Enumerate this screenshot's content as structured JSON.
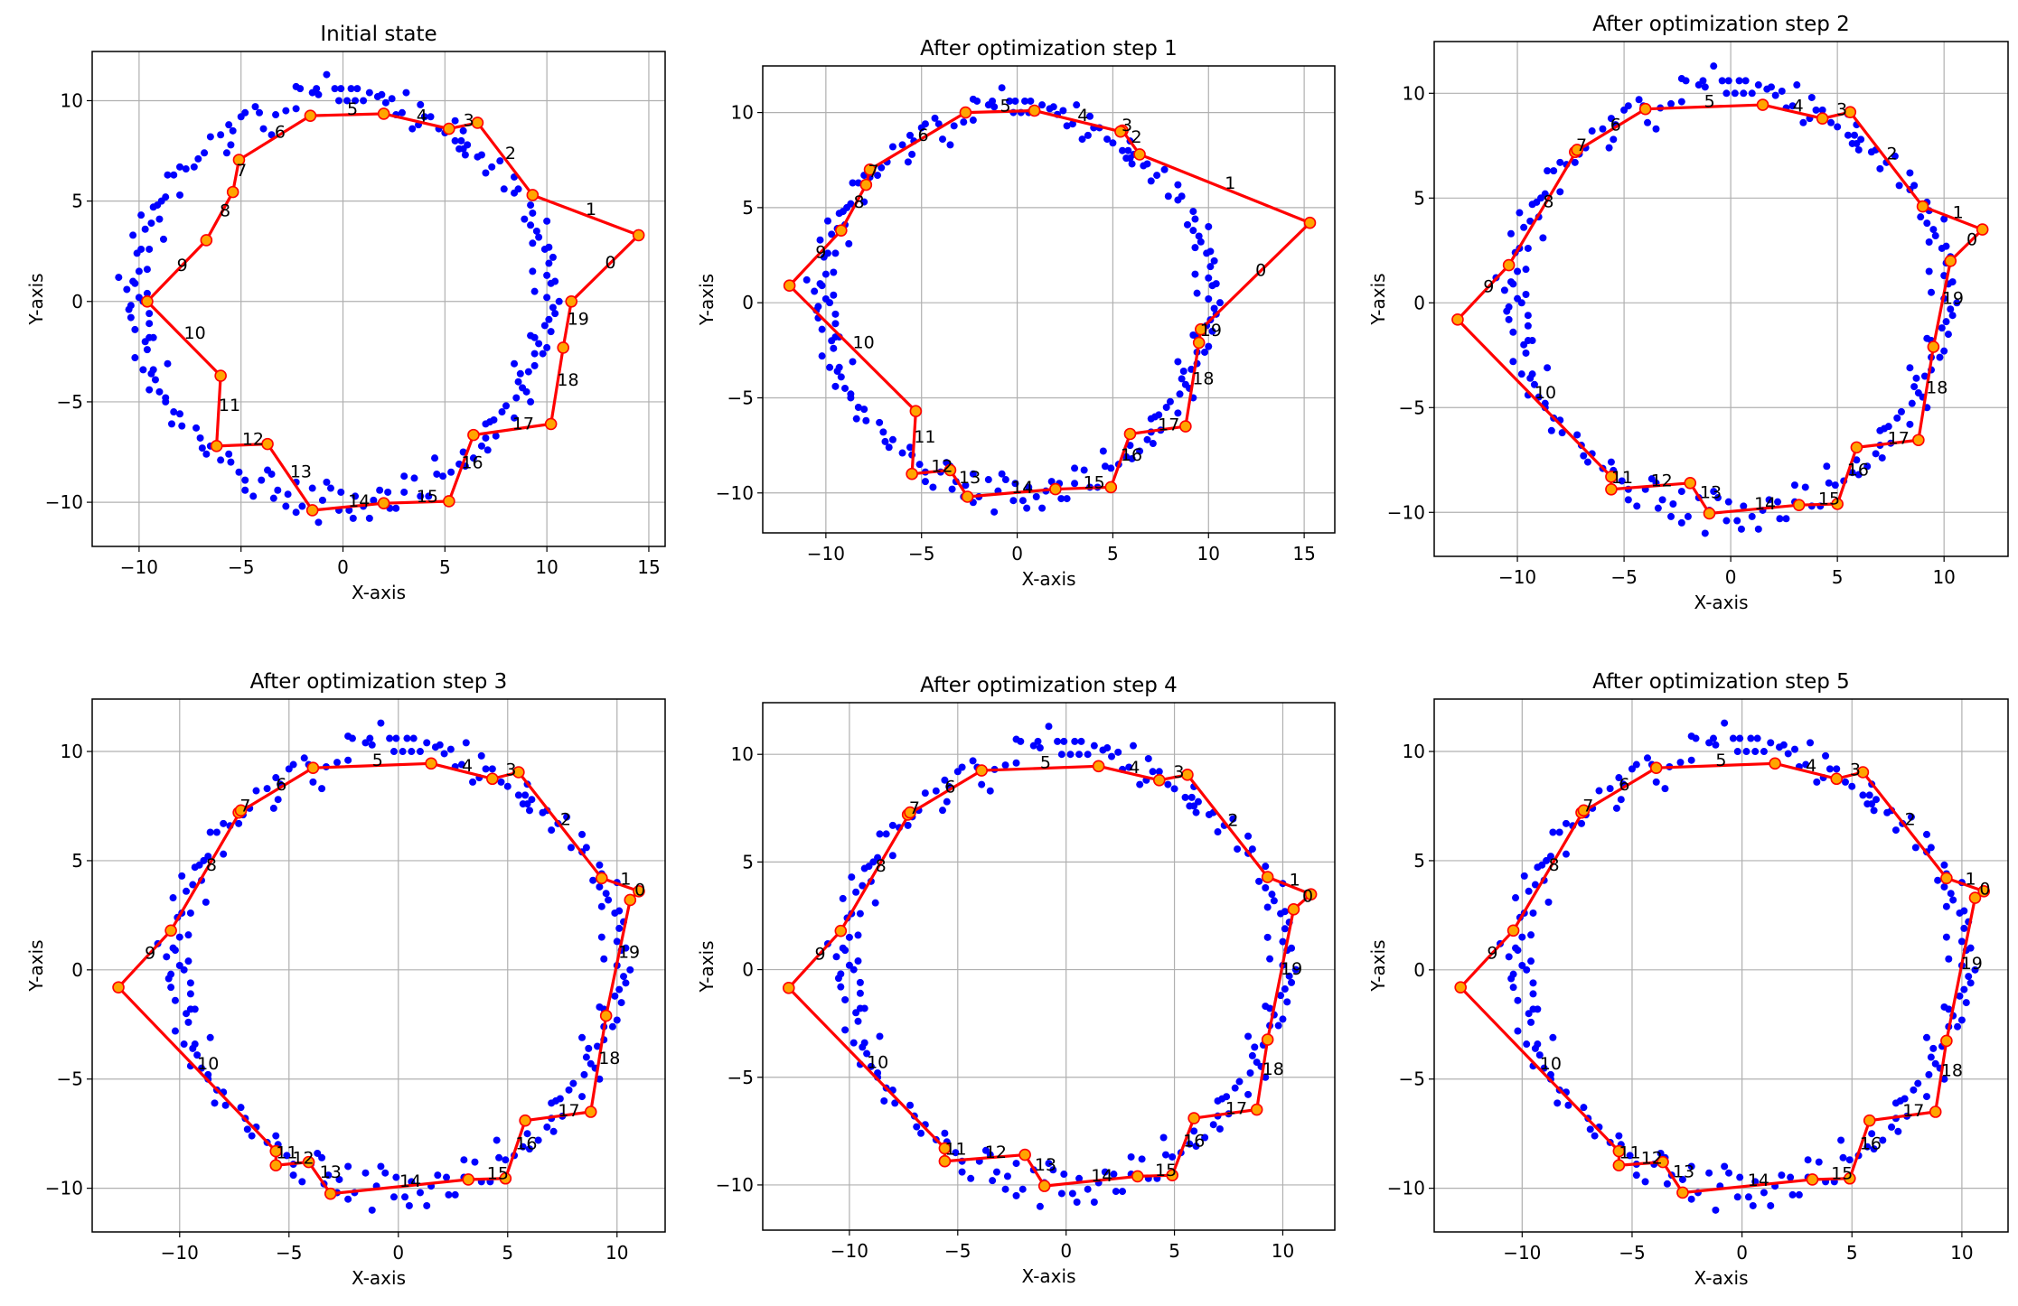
{
  "scatter_points": [
    [
      -0.8,
      11.3
    ],
    [
      -2.3,
      10.7
    ],
    [
      -2.1,
      10.6
    ],
    [
      -1.3,
      10.6
    ],
    [
      -1.5,
      10.4
    ],
    [
      -1.2,
      10.3
    ],
    [
      0.7,
      10.6
    ],
    [
      0.4,
      10.6
    ],
    [
      0.2,
      10.0
    ],
    [
      -0.4,
      10.6
    ],
    [
      -0.1,
      10.6
    ],
    [
      1.3,
      10.4
    ],
    [
      1.7,
      10.2
    ],
    [
      1.9,
      10.3
    ],
    [
      2.4,
      10.1
    ],
    [
      3.1,
      10.4
    ],
    [
      1.0,
      10.0
    ],
    [
      2.1,
      9.9
    ],
    [
      0.6,
      10.0
    ],
    [
      -0.2,
      10.0
    ],
    [
      2.6,
      9.3
    ],
    [
      2.9,
      9.4
    ],
    [
      3.8,
      9.8
    ],
    [
      4.0,
      9.2
    ],
    [
      4.3,
      9.2
    ],
    [
      3.4,
      8.6
    ],
    [
      3.7,
      8.8
    ],
    [
      4.7,
      8.6
    ],
    [
      5.0,
      8.4
    ],
    [
      5.5,
      9.0
    ],
    [
      5.9,
      8.5
    ],
    [
      -2.8,
      9.5
    ],
    [
      -2.3,
      9.6
    ],
    [
      -3.3,
      9.3
    ],
    [
      -3.5,
      8.3
    ],
    [
      -3.9,
      8.6
    ],
    [
      -4.1,
      9.4
    ],
    [
      -4.3,
      9.7
    ],
    [
      -4.8,
      9.4
    ],
    [
      -5.0,
      9.2
    ],
    [
      -5.6,
      8.8
    ],
    [
      -5.4,
      8.5
    ],
    [
      -5.5,
      7.8
    ],
    [
      -5.7,
      7.4
    ],
    [
      -6.0,
      8.3
    ],
    [
      -6.5,
      8.2
    ],
    [
      -6.8,
      7.4
    ],
    [
      -7.1,
      7.1
    ],
    [
      -7.3,
      6.7
    ],
    [
      -7.7,
      6.6
    ],
    [
      -8.0,
      6.7
    ],
    [
      -8.3,
      6.3
    ],
    [
      -8.6,
      6.3
    ],
    [
      -8.0,
      5.3
    ],
    [
      -8.7,
      5.2
    ],
    [
      -8.9,
      5.0
    ],
    [
      -9.1,
      4.8
    ],
    [
      -9.3,
      4.7
    ],
    [
      -9.0,
      4.1
    ],
    [
      -8.8,
      3.1
    ],
    [
      -9.4,
      3.9
    ],
    [
      -9.7,
      3.6
    ],
    [
      -9.9,
      4.3
    ],
    [
      -10.3,
      3.3
    ],
    [
      -9.9,
      2.6
    ],
    [
      -10.1,
      2.4
    ],
    [
      -9.5,
      2.6
    ],
    [
      -9.6,
      1.6
    ],
    [
      -10.0,
      1.5
    ],
    [
      -10.3,
      1.0
    ],
    [
      -10.2,
      0.9
    ],
    [
      -11.0,
      1.2
    ],
    [
      -10.6,
      0.6
    ],
    [
      -10.0,
      0.2
    ],
    [
      -9.8,
      0.0
    ],
    [
      -9.6,
      0.4
    ],
    [
      -10.5,
      -0.4
    ],
    [
      -10.4,
      -0.2
    ],
    [
      -10.4,
      -0.8
    ],
    [
      -9.5,
      -0.6
    ],
    [
      -10.2,
      -1.4
    ],
    [
      -9.5,
      -1.1
    ],
    [
      -9.5,
      -1.8
    ],
    [
      -9.3,
      -1.8
    ],
    [
      -9.7,
      -2.0
    ],
    [
      -9.6,
      -2.4
    ],
    [
      -10.2,
      -2.8
    ],
    [
      -8.6,
      -3.1
    ],
    [
      -9.3,
      -3.4
    ],
    [
      -9.8,
      -3.4
    ],
    [
      -9.4,
      -3.6
    ],
    [
      -9.2,
      -3.9
    ],
    [
      -9.5,
      -4.4
    ],
    [
      -9.0,
      -4.5
    ],
    [
      -8.7,
      -4.8
    ],
    [
      -8.7,
      -5.0
    ],
    [
      -8.3,
      -5.5
    ],
    [
      -8.0,
      -5.6
    ],
    [
      -8.4,
      -6.1
    ],
    [
      -7.9,
      -6.2
    ],
    [
      -7.2,
      -6.3
    ],
    [
      -7.0,
      -6.8
    ],
    [
      -6.9,
      -7.3
    ],
    [
      -6.7,
      -7.6
    ],
    [
      -6.5,
      -7.2
    ],
    [
      -6.0,
      -7.9
    ],
    [
      -5.6,
      -7.6
    ],
    [
      -5.5,
      -8.0
    ],
    [
      -5.1,
      -8.5
    ],
    [
      -4.8,
      -8.9
    ],
    [
      -4.4,
      -9.7
    ],
    [
      -4.8,
      -9.4
    ],
    [
      -4.0,
      -8.9
    ],
    [
      -3.7,
      -8.4
    ],
    [
      -3.5,
      -8.6
    ],
    [
      -3.4,
      -9.8
    ],
    [
      -3.2,
      -9.4
    ],
    [
      -2.7,
      -9.6
    ],
    [
      -2.3,
      -9.0
    ],
    [
      -2.8,
      -10.2
    ],
    [
      -2.3,
      -10.5
    ],
    [
      -2.0,
      -10.2
    ],
    [
      -1.5,
      -9.3
    ],
    [
      -1.2,
      -11.0
    ],
    [
      -1.0,
      -9.9
    ],
    [
      -0.8,
      -9.0
    ],
    [
      -0.6,
      -9.3
    ],
    [
      -0.1,
      -9.5
    ],
    [
      -0.2,
      -10.4
    ],
    [
      0.3,
      -10.4
    ],
    [
      0.5,
      -10.8
    ],
    [
      0.6,
      -9.7
    ],
    [
      1.0,
      -10.2
    ],
    [
      1.3,
      -10.8
    ],
    [
      1.5,
      -9.9
    ],
    [
      1.8,
      -9.4
    ],
    [
      2.2,
      -9.5
    ],
    [
      2.3,
      -10.3
    ],
    [
      2.6,
      -10.3
    ],
    [
      3.0,
      -8.7
    ],
    [
      3.0,
      -9.5
    ],
    [
      3.5,
      -8.8
    ],
    [
      3.8,
      -9.7
    ],
    [
      4.2,
      -9.7
    ],
    [
      4.5,
      -7.8
    ],
    [
      4.6,
      -8.6
    ],
    [
      4.9,
      -8.7
    ],
    [
      5.3,
      -8.5
    ],
    [
      5.7,
      -8.1
    ],
    [
      5.9,
      -7.5
    ],
    [
      6.0,
      -8.2
    ],
    [
      6.4,
      -7.8
    ],
    [
      6.8,
      -7.2
    ],
    [
      7.0,
      -6.8
    ],
    [
      7.0,
      -6.1
    ],
    [
      7.2,
      -6.0
    ],
    [
      7.4,
      -5.9
    ],
    [
      7.1,
      -7.4
    ],
    [
      7.5,
      -6.7
    ],
    [
      7.8,
      -5.5
    ],
    [
      8.0,
      -5.2
    ],
    [
      8.4,
      -5.8
    ],
    [
      8.5,
      -4.8
    ],
    [
      8.6,
      -4.0
    ],
    [
      8.4,
      -3.1
    ],
    [
      8.7,
      -3.6
    ],
    [
      8.8,
      -4.3
    ],
    [
      9.0,
      -4.5
    ],
    [
      9.2,
      -5.0
    ],
    [
      9.1,
      -3.5
    ],
    [
      9.4,
      -3.2
    ],
    [
      9.4,
      -2.6
    ],
    [
      9.6,
      -2.1
    ],
    [
      9.2,
      -1.7
    ],
    [
      9.4,
      -1.8
    ],
    [
      9.8,
      -2.6
    ],
    [
      10.0,
      -2.3
    ],
    [
      10.2,
      -1.5
    ],
    [
      9.9,
      -1.2
    ],
    [
      10.1,
      -0.9
    ],
    [
      10.3,
      -0.3
    ],
    [
      10.4,
      -0.6
    ],
    [
      10.6,
      0.0
    ],
    [
      10.0,
      0.2
    ],
    [
      10.4,
      1.0
    ],
    [
      10.2,
      0.9
    ],
    [
      9.4,
      0.5
    ],
    [
      9.3,
      1.5
    ],
    [
      10.0,
      1.3
    ],
    [
      10.1,
      1.9
    ],
    [
      10.3,
      2.2
    ],
    [
      9.9,
      2.6
    ],
    [
      10.1,
      2.7
    ],
    [
      10.0,
      4.0
    ],
    [
      9.5,
      3.5
    ],
    [
      9.3,
      2.9
    ],
    [
      9.6,
      3.2
    ],
    [
      9.2,
      3.8
    ],
    [
      8.9,
      4.1
    ],
    [
      9.3,
      4.4
    ],
    [
      9.2,
      4.8
    ],
    [
      8.4,
      5.4
    ],
    [
      8.6,
      5.6
    ],
    [
      8.4,
      6.2
    ],
    [
      7.9,
      5.6
    ],
    [
      7.7,
      7.0
    ],
    [
      7.3,
      6.7
    ],
    [
      7.0,
      6.4
    ],
    [
      6.8,
      7.3
    ],
    [
      6.6,
      7.2
    ],
    [
      6.1,
      7.8
    ],
    [
      5.9,
      7.6
    ],
    [
      5.7,
      7.6
    ],
    [
      5.5,
      8.0
    ],
    [
      6.0,
      7.3
    ],
    [
      5.8,
      8.0
    ]
  ],
  "colors": {
    "scatter": "#0000ff",
    "path": "#ff0000",
    "marker_face": "#ffa500",
    "grid": "#b0b0b0"
  },
  "chart_data": [
    {
      "type": "scatter+line",
      "title": "Initial state",
      "xlabel": "X-axis",
      "ylabel": "Y-axis",
      "xlim": [
        -12.3,
        15.8
      ],
      "ylim": [
        -12.2,
        12.45
      ],
      "xticks": [
        -10,
        -5,
        0,
        5,
        10,
        15
      ],
      "yticks": [
        -10,
        -5,
        0,
        5,
        10
      ],
      "grid": true,
      "path": [
        [
          11.2,
          0
        ],
        [
          14.5,
          3.3
        ],
        [
          9.3,
          5.3
        ],
        [
          6.6,
          8.9
        ],
        [
          5.2,
          8.6
        ],
        [
          2.0,
          9.35
        ],
        [
          -1.6,
          9.25
        ],
        [
          -5.1,
          7.05
        ],
        [
          -5.4,
          5.45
        ],
        [
          -6.7,
          3.05
        ],
        [
          -9.6,
          0
        ],
        [
          -6.0,
          -3.7
        ],
        [
          -6.2,
          -7.2
        ],
        [
          -3.7,
          -7.1
        ],
        [
          -1.5,
          -10.4
        ],
        [
          2.0,
          -10.05
        ],
        [
          5.2,
          -9.95
        ],
        [
          6.4,
          -6.65
        ],
        [
          10.2,
          -6.1
        ],
        [
          10.8,
          -2.3
        ]
      ],
      "edge_labels": [
        "0",
        "1",
        "2",
        "3",
        "4",
        "5",
        "6",
        "7",
        "8",
        "9",
        "10",
        "11",
        "12",
        "13",
        "14",
        "15",
        "16",
        "17",
        "18",
        "19"
      ]
    },
    {
      "type": "scatter+line",
      "title": "After optimization step 1",
      "xlabel": "X-axis",
      "ylabel": "Y-axis",
      "xlim": [
        -13.3,
        16.6
      ],
      "ylim": [
        -12.1,
        12.45
      ],
      "xticks": [
        -10,
        -5,
        0,
        5,
        10,
        15
      ],
      "yticks": [
        -10,
        -5,
        0,
        5,
        10
      ],
      "grid": true,
      "path": [
        [
          9.6,
          -1.4
        ],
        [
          15.3,
          4.2
        ],
        [
          6.4,
          7.8
        ],
        [
          5.5,
          9.05
        ],
        [
          5.4,
          9.0
        ],
        [
          0.9,
          10.1
        ],
        [
          -2.7,
          10.0
        ],
        [
          -7.7,
          7.0
        ],
        [
          -7.9,
          6.2
        ],
        [
          -9.2,
          3.8
        ],
        [
          -11.9,
          0.9
        ],
        [
          -5.3,
          -5.7
        ],
        [
          -5.5,
          -9.0
        ],
        [
          -3.5,
          -8.8
        ],
        [
          -2.6,
          -10.2
        ],
        [
          2.0,
          -9.8
        ],
        [
          4.9,
          -9.7
        ],
        [
          5.9,
          -6.9
        ],
        [
          8.8,
          -6.5
        ],
        [
          9.5,
          -2.1
        ]
      ],
      "edge_labels": [
        "0",
        "1",
        "2",
        "3",
        "4",
        "5",
        "6",
        "7",
        "8",
        "9",
        "10",
        "11",
        "12",
        "13",
        "14",
        "15",
        "16",
        "17",
        "18",
        "19"
      ]
    },
    {
      "type": "scatter+line",
      "title": "After optimization step 2",
      "xlabel": "X-axis",
      "ylabel": "Y-axis",
      "xlim": [
        -13.9,
        13.0
      ],
      "ylim": [
        -12.1,
        12.47
      ],
      "xticks": [
        -10,
        -5,
        0,
        5,
        10
      ],
      "yticks": [
        -10,
        -5,
        0,
        5,
        10
      ],
      "grid": true,
      "path": [
        [
          10.3,
          2.0
        ],
        [
          11.8,
          3.5
        ],
        [
          9.0,
          4.6
        ],
        [
          5.6,
          9.1
        ],
        [
          4.3,
          8.8
        ],
        [
          1.5,
          9.45
        ],
        [
          -4.0,
          9.25
        ],
        [
          -7.3,
          7.2
        ],
        [
          -7.2,
          7.3
        ],
        [
          -10.4,
          1.8
        ],
        [
          -12.8,
          -0.8
        ],
        [
          -5.6,
          -8.3
        ],
        [
          -5.6,
          -8.9
        ],
        [
          -1.9,
          -8.6
        ],
        [
          -1.0,
          -10.05
        ],
        [
          3.2,
          -9.65
        ],
        [
          5.0,
          -9.6
        ],
        [
          5.9,
          -6.9
        ],
        [
          8.8,
          -6.55
        ],
        [
          9.5,
          -2.1
        ]
      ],
      "edge_labels": [
        "0",
        "1",
        "2",
        "3",
        "4",
        "5",
        "6",
        "7",
        "8",
        "9",
        "10",
        "11",
        "12",
        "13",
        "14",
        "15",
        "16",
        "17",
        "18",
        "19"
      ]
    },
    {
      "type": "scatter+line",
      "title": "After optimization step 3",
      "xlabel": "X-axis",
      "ylabel": "Y-axis",
      "xlim": [
        -14.0,
        12.2
      ],
      "ylim": [
        -12.0,
        12.4
      ],
      "xticks": [
        -10,
        -5,
        0,
        5,
        10
      ],
      "yticks": [
        -10,
        -5,
        0,
        5,
        10
      ],
      "grid": true,
      "path": [
        [
          10.6,
          3.2
        ],
        [
          11.0,
          3.6
        ],
        [
          9.3,
          4.2
        ],
        [
          5.5,
          9.05
        ],
        [
          4.3,
          8.75
        ],
        [
          1.5,
          9.45
        ],
        [
          -3.9,
          9.25
        ],
        [
          -7.3,
          7.2
        ],
        [
          -7.2,
          7.3
        ],
        [
          -10.4,
          1.8
        ],
        [
          -12.8,
          -0.8
        ],
        [
          -5.6,
          -8.3
        ],
        [
          -5.6,
          -8.95
        ],
        [
          -4.1,
          -8.8
        ],
        [
          -3.1,
          -10.25
        ],
        [
          3.2,
          -9.6
        ],
        [
          4.9,
          -9.55
        ],
        [
          5.8,
          -6.9
        ],
        [
          8.8,
          -6.5
        ],
        [
          9.5,
          -2.1
        ]
      ],
      "edge_labels": [
        "0",
        "1",
        "2",
        "3",
        "4",
        "5",
        "6",
        "7",
        "8",
        "9",
        "10",
        "11",
        "12",
        "13",
        "14",
        "15",
        "16",
        "17",
        "18",
        "19"
      ]
    },
    {
      "type": "scatter+line",
      "title": "After optimization step 4",
      "xlabel": "X-axis",
      "ylabel": "Y-axis",
      "xlim": [
        -14.0,
        12.4
      ],
      "ylim": [
        -12.1,
        12.4
      ],
      "xticks": [
        -10,
        -5,
        0,
        5,
        10
      ],
      "yticks": [
        -10,
        -5,
        0,
        5,
        10
      ],
      "grid": true,
      "path": [
        [
          10.5,
          2.8
        ],
        [
          11.3,
          3.5
        ],
        [
          9.3,
          4.3
        ],
        [
          5.6,
          9.05
        ],
        [
          4.3,
          8.8
        ],
        [
          1.5,
          9.45
        ],
        [
          -3.9,
          9.25
        ],
        [
          -7.3,
          7.2
        ],
        [
          -7.2,
          7.3
        ],
        [
          -10.4,
          1.8
        ],
        [
          -12.8,
          -0.85
        ],
        [
          -5.6,
          -8.3
        ],
        [
          -5.6,
          -8.9
        ],
        [
          -1.9,
          -8.6
        ],
        [
          -1.0,
          -10.05
        ],
        [
          3.3,
          -9.6
        ],
        [
          4.9,
          -9.55
        ],
        [
          5.9,
          -6.9
        ],
        [
          8.8,
          -6.5
        ],
        [
          9.3,
          -3.25
        ]
      ],
      "edge_labels": [
        "0",
        "1",
        "2",
        "3",
        "4",
        "5",
        "6",
        "7",
        "8",
        "9",
        "10",
        "11",
        "12",
        "13",
        "14",
        "15",
        "16",
        "17",
        "18",
        "19"
      ]
    },
    {
      "type": "scatter+line",
      "title": "After optimization step 5",
      "xlabel": "X-axis",
      "ylabel": "Y-axis",
      "xlim": [
        -14.0,
        12.1
      ],
      "ylim": [
        -12.0,
        12.4
      ],
      "xticks": [
        -10,
        -5,
        0,
        5,
        10
      ],
      "yticks": [
        -10,
        -5,
        0,
        5,
        10
      ],
      "grid": true,
      "path": [
        [
          10.6,
          3.3
        ],
        [
          11.0,
          3.6
        ],
        [
          9.3,
          4.2
        ],
        [
          5.5,
          9.05
        ],
        [
          4.3,
          8.75
        ],
        [
          1.5,
          9.45
        ],
        [
          -3.9,
          9.25
        ],
        [
          -7.3,
          7.2
        ],
        [
          -7.2,
          7.3
        ],
        [
          -10.4,
          1.8
        ],
        [
          -12.8,
          -0.8
        ],
        [
          -5.6,
          -8.3
        ],
        [
          -5.6,
          -8.95
        ],
        [
          -3.6,
          -8.8
        ],
        [
          -2.7,
          -10.2
        ],
        [
          3.2,
          -9.6
        ],
        [
          4.9,
          -9.55
        ],
        [
          5.8,
          -6.9
        ],
        [
          8.8,
          -6.5
        ],
        [
          9.3,
          -3.25
        ]
      ],
      "edge_labels": [
        "0",
        "1",
        "2",
        "3",
        "4",
        "5",
        "6",
        "7",
        "8",
        "9",
        "10",
        "11",
        "12",
        "13",
        "14",
        "15",
        "16",
        "17",
        "18",
        "19"
      ]
    }
  ]
}
